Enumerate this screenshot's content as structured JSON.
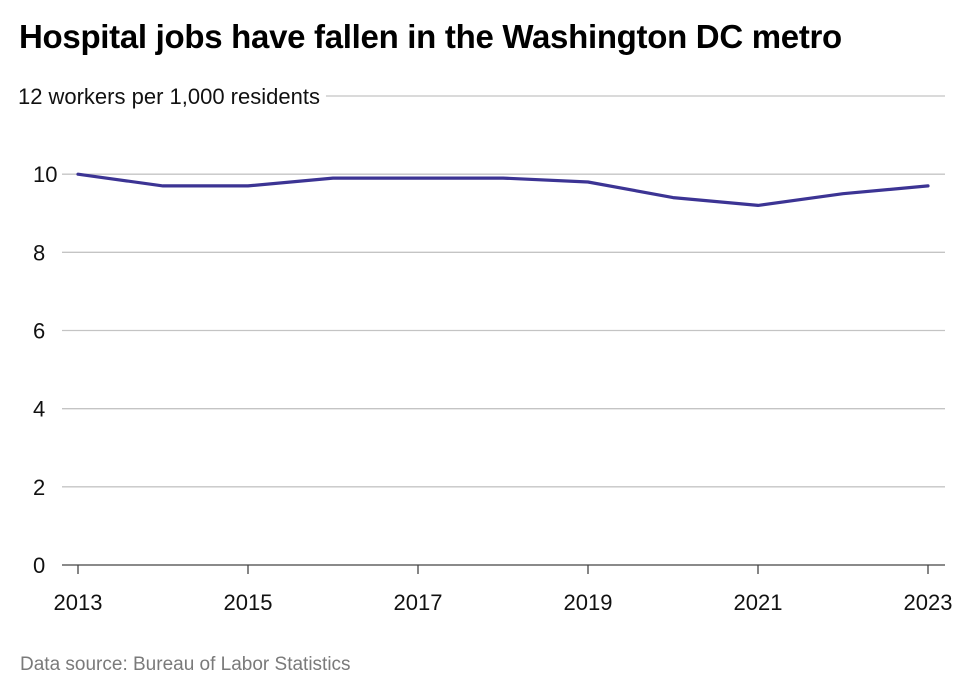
{
  "chart_data": {
    "type": "line",
    "title": "Hospital jobs have fallen in the Washington DC metro",
    "y_unit_label": "workers per 1,000 residents",
    "x": [
      2013,
      2014,
      2015,
      2016,
      2017,
      2018,
      2019,
      2020,
      2021,
      2022,
      2023
    ],
    "series": [
      {
        "values": [
          10.0,
          9.7,
          9.7,
          9.9,
          9.9,
          9.9,
          9.8,
          9.4,
          9.2,
          9.5,
          9.7
        ]
      }
    ],
    "y_ticks": [
      0,
      2,
      4,
      6,
      8,
      10,
      12
    ],
    "x_ticks": [
      2013,
      2015,
      2017,
      2019,
      2021,
      2023
    ],
    "ylim": [
      0,
      12
    ],
    "xlim": [
      2013,
      2023
    ],
    "grid": true,
    "line_color": "#3c3494",
    "source": "Data source: Bureau of Labor Statistics"
  }
}
